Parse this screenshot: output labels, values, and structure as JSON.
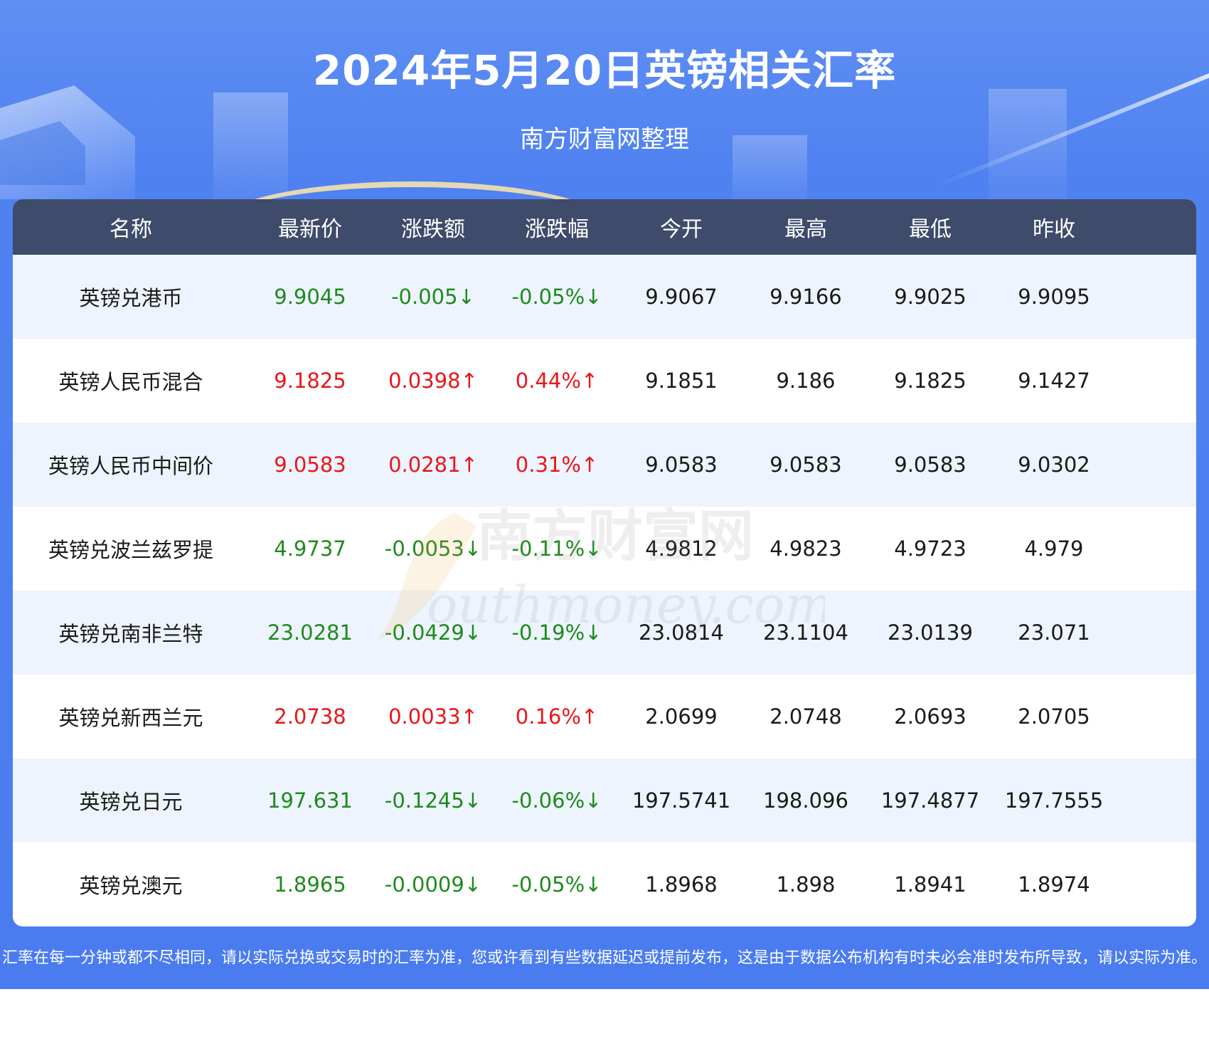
{
  "header": {
    "title": "2024年5月20日英镑相关汇率",
    "subtitle": "南方财富网整理"
  },
  "table": {
    "columns": [
      "名称",
      "最新价",
      "涨跌额",
      "涨跌幅",
      "今开",
      "最高",
      "最低",
      "昨收"
    ],
    "rows": [
      {
        "name": "英镑兑港币",
        "latest": "9.9045",
        "change": "-0.005↓",
        "change_pct": "-0.05%↓",
        "open": "9.9067",
        "high": "9.9166",
        "low": "9.9025",
        "prev_close": "9.9095",
        "direction": "down"
      },
      {
        "name": "英镑人民币混合",
        "latest": "9.1825",
        "change": "0.0398↑",
        "change_pct": "0.44%↑",
        "open": "9.1851",
        "high": "9.186",
        "low": "9.1825",
        "prev_close": "9.1427",
        "direction": "up"
      },
      {
        "name": "英镑人民币中间价",
        "latest": "9.0583",
        "change": "0.0281↑",
        "change_pct": "0.31%↑",
        "open": "9.0583",
        "high": "9.0583",
        "low": "9.0583",
        "prev_close": "9.0302",
        "direction": "up"
      },
      {
        "name": "英镑兑波兰兹罗提",
        "latest": "4.9737",
        "change": "-0.0053↓",
        "change_pct": "-0.11%↓",
        "open": "4.9812",
        "high": "4.9823",
        "low": "4.9723",
        "prev_close": "4.979",
        "direction": "down"
      },
      {
        "name": "英镑兑南非兰特",
        "latest": "23.0281",
        "change": "-0.0429↓",
        "change_pct": "-0.19%↓",
        "open": "23.0814",
        "high": "23.1104",
        "low": "23.0139",
        "prev_close": "23.071",
        "direction": "down"
      },
      {
        "name": "英镑兑新西兰元",
        "latest": "2.0738",
        "change": "0.0033↑",
        "change_pct": "0.16%↑",
        "open": "2.0699",
        "high": "2.0748",
        "low": "2.0693",
        "prev_close": "2.0705",
        "direction": "up"
      },
      {
        "name": "英镑兑日元",
        "latest": "197.631",
        "change": "-0.1245↓",
        "change_pct": "-0.06%↓",
        "open": "197.5741",
        "high": "198.096",
        "low": "197.4877",
        "prev_close": "197.7555",
        "direction": "down"
      },
      {
        "name": "英镑兑澳元",
        "latest": "1.8965",
        "change": "-0.0009↓",
        "change_pct": "-0.05%↓",
        "open": "1.8968",
        "high": "1.898",
        "low": "1.8941",
        "prev_close": "1.8974",
        "direction": "down"
      }
    ]
  },
  "watermark": {
    "cn": "南方财富网",
    "en": "outhmoney.com"
  },
  "footer": {
    "disclaimer": "汇率在每一分钟或都不尽相同，请以实际兑换或交易时的汇率为准，您或许看到有些数据延迟或提前发布，这是由于数据公布机构有时未必会准时发布所导致，请以实际为准。"
  },
  "colors": {
    "background_blue": "#4f81f0",
    "header_row": "#3e4b6a",
    "row_alt": "#eef4fd",
    "up": "#e8161b",
    "down": "#1e8a1e"
  }
}
